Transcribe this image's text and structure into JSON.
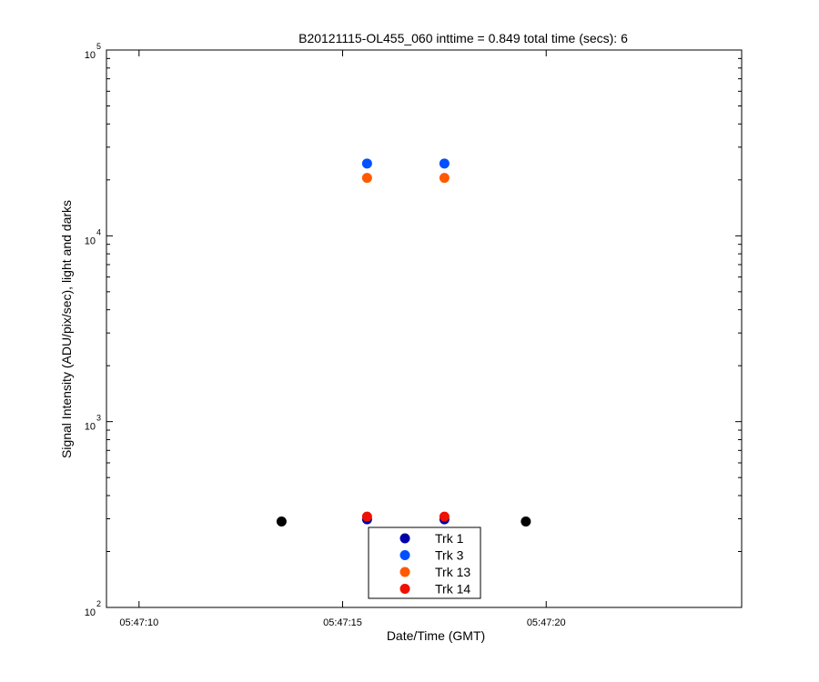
{
  "chart_data": {
    "type": "scatter",
    "title": "B20121115-OL455_060 inttime = 0.849 total time (secs): 6",
    "xlabel": "Date/Time (GMT)",
    "ylabel": "Signal Intensity (ADU/pix/sec), light and darks",
    "x_ticks": [
      "05:47:10",
      "05:47:15",
      "05:47:20"
    ],
    "x_tick_seconds": [
      10,
      15,
      20
    ],
    "xlim_seconds": [
      9.2,
      24.8
    ],
    "y_scale": "log",
    "ylim": [
      100,
      100000
    ],
    "y_ticks": [
      {
        "base": "10",
        "exp": "2",
        "value": 100
      },
      {
        "base": "10",
        "exp": "3",
        "value": 1000
      },
      {
        "base": "10",
        "exp": "4",
        "value": 10000
      },
      {
        "base": "10",
        "exp": "5",
        "value": 100000
      }
    ],
    "legend_position": "bottom-center",
    "series": [
      {
        "name": "",
        "color": "#000000",
        "points": [
          {
            "x": "05:47:13.5",
            "y": 290
          },
          {
            "x": "05:47:19.5",
            "y": 290
          }
        ]
      },
      {
        "name": "Trk 1",
        "color": "#0000a8",
        "points": [
          {
            "x": "05:47:15.6",
            "y": 298
          },
          {
            "x": "05:47:17.5",
            "y": 298
          }
        ]
      },
      {
        "name": "Trk 3",
        "color": "#0050ff",
        "points": [
          {
            "x": "05:47:15.6",
            "y": 24500
          },
          {
            "x": "05:47:17.5",
            "y": 24500
          }
        ]
      },
      {
        "name": "Trk 13",
        "color": "#ff5a00",
        "points": [
          {
            "x": "05:47:15.6",
            "y": 20500
          },
          {
            "x": "05:47:17.5",
            "y": 20500
          }
        ]
      },
      {
        "name": "Trk 14",
        "color": "#ee1000",
        "points": [
          {
            "x": "05:47:15.6",
            "y": 308
          },
          {
            "x": "05:47:17.5",
            "y": 308
          }
        ]
      }
    ]
  }
}
